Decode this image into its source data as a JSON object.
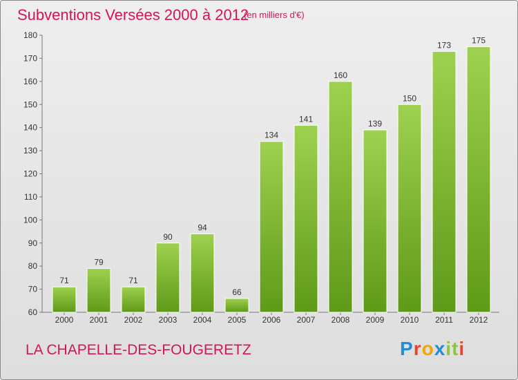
{
  "header": {
    "title": "Subventions Versées 2000 à 2012",
    "subtitle": "(en milliers d'€)"
  },
  "footer": {
    "commune": "LA CHAPELLE-DES-FOUGERETZ",
    "brand": "Proxiti"
  },
  "colors": {
    "accent": "#d4145a",
    "bar_light": "#9ed14f",
    "bar_dark": "#5e9a18",
    "brand_letters": [
      "#1f8fd1",
      "#e8442c",
      "#f5a400",
      "#1f8fd1",
      "#8cc63f",
      "#8cc63f",
      "#e8442c"
    ]
  },
  "chart_data": {
    "type": "bar",
    "categories": [
      "2000",
      "2001",
      "2002",
      "2003",
      "2004",
      "2005",
      "2006",
      "2007",
      "2008",
      "2009",
      "2010",
      "2011",
      "2012"
    ],
    "values": [
      71,
      79,
      71,
      90,
      94,
      66,
      134,
      141,
      160,
      139,
      150,
      173,
      175
    ],
    "ylim": [
      60,
      180
    ],
    "yticks": [
      60,
      70,
      80,
      90,
      100,
      110,
      120,
      130,
      140,
      150,
      160,
      170,
      180
    ],
    "grid": false
  }
}
